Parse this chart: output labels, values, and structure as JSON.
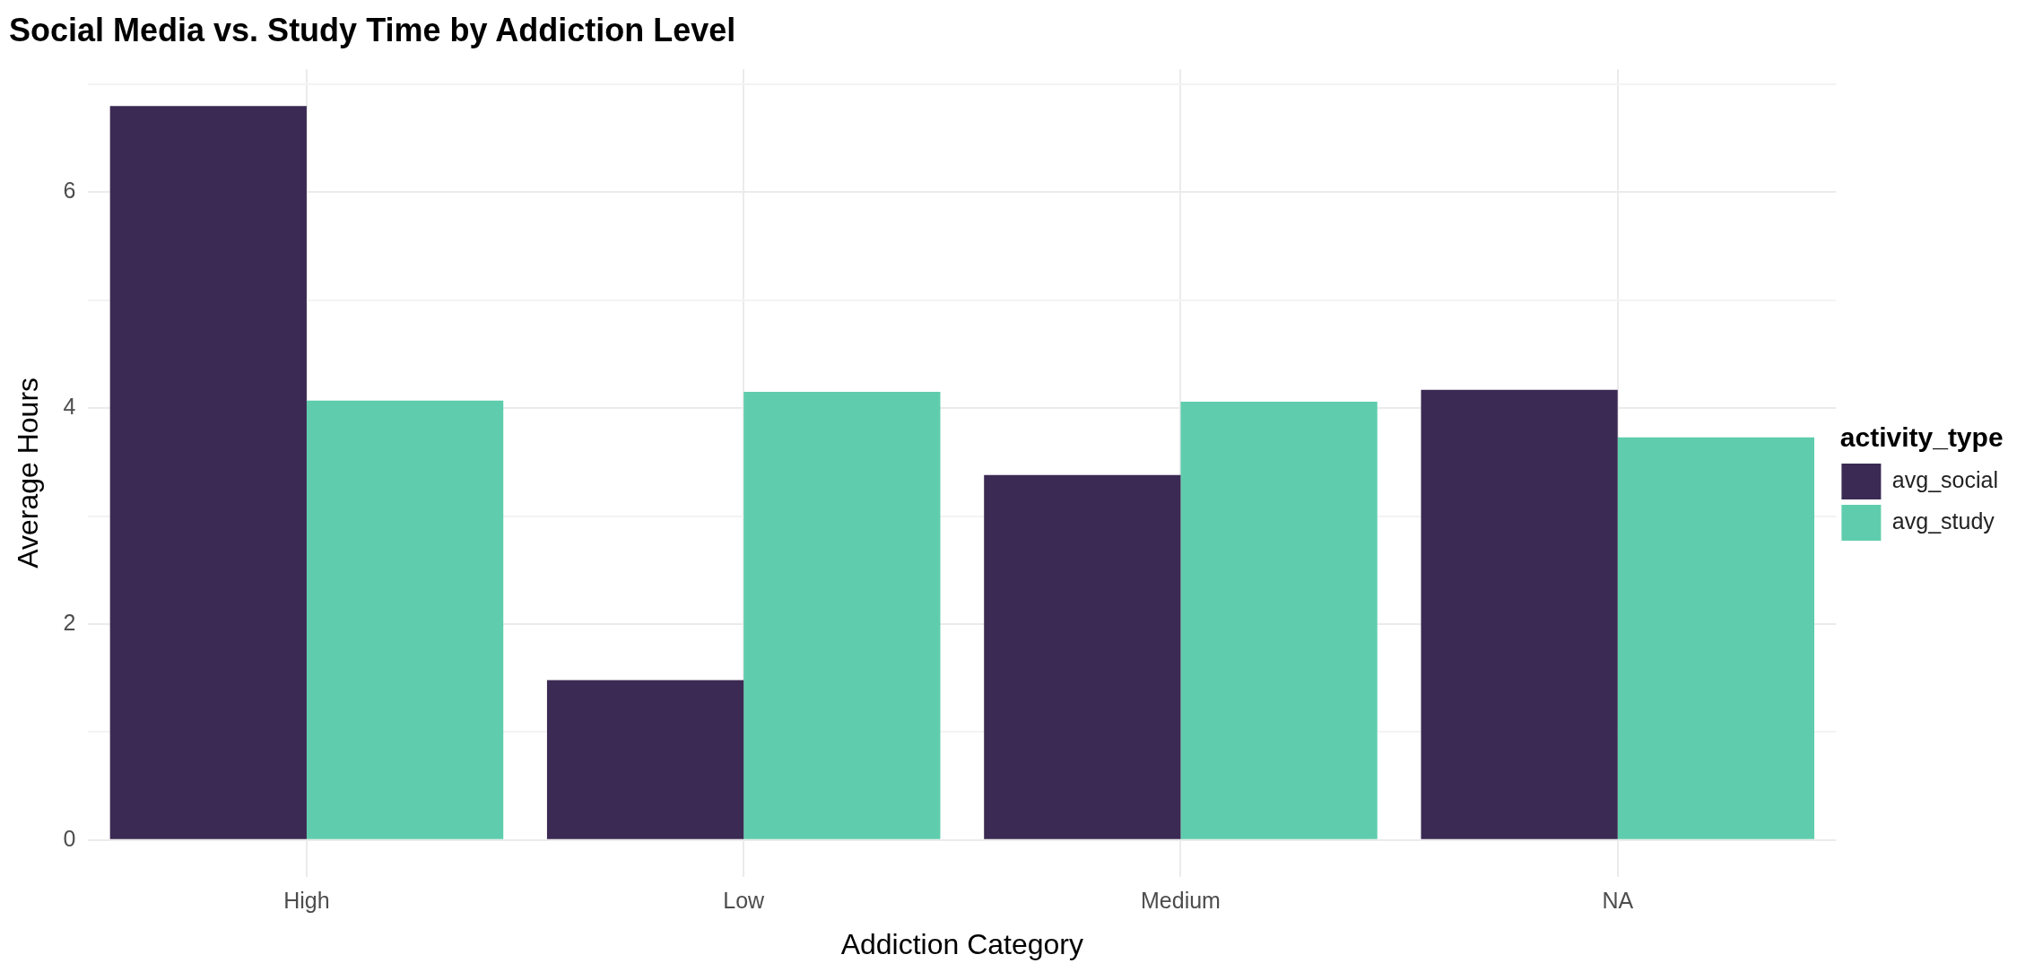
{
  "chart_data": {
    "type": "bar",
    "title": "Social Media vs. Study Time by Addiction Level",
    "xlabel": "Addiction Category",
    "ylabel": "Average Hours",
    "legend_title": "activity_type",
    "categories": [
      "High",
      "Low",
      "Medium",
      "NA"
    ],
    "series": [
      {
        "name": "avg_social",
        "color": "#3b2a53",
        "values": [
          6.8,
          1.48,
          3.38,
          4.17
        ]
      },
      {
        "name": "avg_study",
        "color": "#5fcdad",
        "values": [
          4.07,
          4.15,
          4.06,
          3.73
        ]
      }
    ],
    "ylim": [
      -0.34,
      7.14
    ],
    "yticks": [
      0,
      {
        "value": 1,
        "label": null
      },
      2,
      {
        "value": 3,
        "label": null
      },
      4,
      {
        "value": 5,
        "label": null
      },
      6,
      {
        "value": 7,
        "label": null
      }
    ],
    "grid": true,
    "legend": "right"
  }
}
